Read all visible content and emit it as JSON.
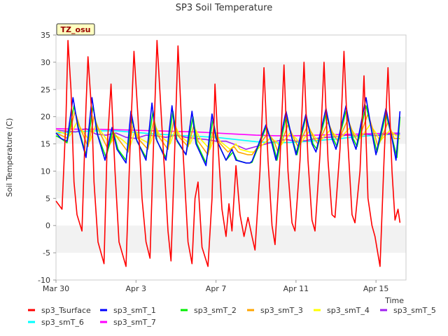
{
  "chart_data": {
    "type": "line",
    "title": "SP3 Soil Temperature",
    "xlabel": "Time",
    "ylabel": "Soil Temperature (C)",
    "site_label": "TZ_osu",
    "xlim_days": [
      0,
      17.5
    ],
    "ylim": [
      -10,
      35
    ],
    "yticks": [
      -10,
      -5,
      0,
      5,
      10,
      15,
      20,
      25,
      30,
      35
    ],
    "xticks": [
      {
        "day": 0,
        "label": "Mar 30"
      },
      {
        "day": 4,
        "label": "Apr 3"
      },
      {
        "day": 8,
        "label": "Apr 7"
      },
      {
        "day": 12,
        "label": "Apr 11"
      },
      {
        "day": 16,
        "label": "Apr 15"
      }
    ],
    "grid_bands": true,
    "x_unit": "days since Mar 30 00:00",
    "series": [
      {
        "name": "sp3_Tsurface",
        "color": "#ff0000",
        "x": [
          0.0,
          0.3,
          0.5,
          0.6,
          0.75,
          0.9,
          1.05,
          1.3,
          1.5,
          1.6,
          1.8,
          1.9,
          2.1,
          2.4,
          2.55,
          2.75,
          2.95,
          3.15,
          3.5,
          3.7,
          3.9,
          4.1,
          4.3,
          4.5,
          4.7,
          4.85,
          5.05,
          5.3,
          5.6,
          5.75,
          5.9,
          6.1,
          6.3,
          6.6,
          6.8,
          6.95,
          7.1,
          7.3,
          7.6,
          7.8,
          7.95,
          8.1,
          8.3,
          8.5,
          8.65,
          8.8,
          9.0,
          9.2,
          9.4,
          9.6,
          9.8,
          9.95,
          10.2,
          10.4,
          10.6,
          10.8,
          10.95,
          11.2,
          11.4,
          11.6,
          11.8,
          11.95,
          12.2,
          12.4,
          12.6,
          12.8,
          12.95,
          13.2,
          13.4,
          13.6,
          13.8,
          13.95,
          14.2,
          14.4,
          14.6,
          14.8,
          14.95,
          15.2,
          15.4,
          15.6,
          15.8,
          15.95,
          16.2,
          16.4,
          16.6,
          16.8,
          16.95,
          17.1,
          17.2
        ],
        "values": [
          4.5,
          3.0,
          20.0,
          34.0,
          25.0,
          8.0,
          2.0,
          -1.0,
          22.0,
          31.0,
          20.0,
          8.0,
          -3.0,
          -7.0,
          14.0,
          26.0,
          10.0,
          -3.0,
          -7.5,
          14.0,
          32.0,
          20.0,
          5.0,
          -3.0,
          -6.0,
          12.0,
          34.0,
          18.0,
          -1.0,
          -6.5,
          10.0,
          33.0,
          17.0,
          -3.0,
          -7.0,
          5.0,
          8.0,
          -4.0,
          -7.5,
          5.0,
          26.0,
          15.0,
          3.0,
          -2.0,
          4.0,
          -1.0,
          11.0,
          2.0,
          -2.0,
          1.5,
          -2.0,
          -4.5,
          10.0,
          29.0,
          12.0,
          0.0,
          -3.5,
          12.0,
          29.5,
          10.0,
          0.5,
          -1.0,
          12.0,
          30.0,
          12.0,
          1.0,
          -1.0,
          13.0,
          30.0,
          12.0,
          2.0,
          1.5,
          14.0,
          32.0,
          15.0,
          2.0,
          0.5,
          10.0,
          27.5,
          5.0,
          0.0,
          -2.0,
          -7.5,
          12.0,
          29.0,
          10.0,
          1.0,
          3.0,
          0.5
        ]
      },
      {
        "name": "sp3_smT_1",
        "color": "#0000ff",
        "x": [
          0.0,
          0.25,
          0.55,
          0.85,
          1.1,
          1.5,
          1.8,
          2.05,
          2.45,
          2.8,
          3.05,
          3.5,
          3.75,
          4.0,
          4.5,
          4.8,
          5.0,
          5.5,
          5.8,
          6.0,
          6.5,
          6.8,
          7.0,
          7.5,
          7.8,
          8.0,
          8.5,
          8.8,
          9.0,
          9.5,
          9.7,
          9.8,
          10.5,
          10.8,
          11.0,
          11.5,
          11.8,
          12.0,
          12.5,
          12.8,
          13.0,
          13.5,
          13.8,
          14.0,
          14.5,
          14.8,
          15.0,
          15.5,
          15.8,
          16.0,
          16.5,
          16.8,
          17.0,
          17.2
        ],
        "values": [
          17.0,
          16.0,
          15.5,
          23.5,
          18.0,
          12.5,
          23.5,
          17.0,
          12.0,
          18.0,
          14.0,
          11.5,
          21.0,
          16.0,
          12.0,
          22.5,
          16.0,
          12.0,
          22.0,
          16.0,
          13.0,
          21.0,
          15.0,
          11.0,
          20.5,
          16.0,
          12.0,
          14.0,
          12.0,
          11.5,
          11.5,
          11.8,
          18.5,
          15.0,
          12.0,
          21.0,
          16.0,
          13.0,
          20.5,
          15.0,
          13.5,
          21.5,
          16.0,
          14.0,
          22.0,
          16.0,
          14.0,
          23.5,
          17.0,
          13.0,
          21.5,
          16.0,
          12.0,
          21.0
        ]
      },
      {
        "name": "sp3_smT_2",
        "color": "#00ee00",
        "x": [
          0.0,
          0.25,
          0.55,
          0.9,
          1.15,
          1.5,
          1.85,
          2.1,
          2.5,
          2.85,
          3.1,
          3.5,
          3.8,
          4.05,
          4.5,
          4.85,
          5.05,
          5.5,
          5.85,
          6.05,
          6.5,
          6.85,
          7.05,
          7.5,
          7.85,
          8.05,
          8.5,
          8.85,
          9.05,
          9.5,
          9.7,
          9.8,
          10.5,
          10.85,
          11.05,
          11.5,
          11.85,
          12.05,
          12.5,
          12.85,
          13.05,
          13.5,
          13.85,
          14.05,
          14.5,
          14.85,
          15.05,
          15.5,
          15.85,
          16.05,
          16.5,
          16.85,
          17.05,
          17.2
        ],
        "values": [
          16.5,
          16.0,
          15.2,
          22.0,
          17.5,
          13.0,
          22.0,
          16.5,
          12.5,
          17.5,
          14.0,
          12.0,
          19.5,
          15.5,
          12.5,
          21.0,
          15.5,
          12.5,
          21.0,
          15.5,
          13.0,
          20.0,
          15.0,
          11.5,
          19.5,
          15.5,
          12.0,
          13.5,
          12.0,
          11.5,
          11.5,
          11.6,
          18.0,
          15.0,
          12.0,
          20.0,
          15.5,
          13.0,
          20.0,
          15.0,
          14.0,
          20.5,
          16.0,
          14.5,
          21.0,
          16.0,
          14.5,
          22.0,
          16.5,
          13.5,
          20.5,
          15.5,
          12.5,
          20.0
        ]
      },
      {
        "name": "sp3_smT_3",
        "color": "#ffa500",
        "x": [
          0.0,
          0.6,
          0.95,
          1.2,
          1.6,
          1.9,
          2.2,
          2.6,
          2.9,
          3.2,
          3.6,
          3.85,
          4.1,
          4.6,
          4.9,
          5.1,
          5.6,
          5.9,
          6.1,
          6.6,
          6.9,
          7.1,
          7.6,
          7.9,
          8.1,
          8.6,
          8.9,
          9.1,
          9.6,
          9.8,
          10.6,
          10.9,
          11.1,
          11.6,
          11.9,
          12.1,
          12.6,
          12.9,
          13.1,
          13.6,
          13.9,
          14.1,
          14.6,
          14.9,
          15.1,
          15.6,
          15.9,
          16.1,
          16.6,
          16.9,
          17.2
        ],
        "values": [
          17.0,
          16.0,
          21.0,
          18.0,
          14.5,
          20.0,
          17.0,
          14.0,
          17.0,
          15.5,
          13.5,
          18.5,
          16.0,
          14.0,
          19.5,
          16.5,
          14.0,
          19.5,
          16.5,
          14.5,
          18.5,
          15.5,
          13.0,
          18.0,
          15.5,
          13.5,
          14.5,
          13.5,
          13.0,
          13.0,
          17.0,
          15.5,
          13.5,
          18.5,
          16.0,
          14.5,
          18.5,
          16.0,
          15.0,
          19.0,
          16.5,
          15.5,
          19.5,
          16.5,
          15.5,
          20.5,
          17.0,
          14.5,
          19.0,
          16.0,
          16.0
        ]
      },
      {
        "name": "sp3_smT_4",
        "color": "#ffff00",
        "x": [
          0.0,
          0.7,
          1.05,
          1.3,
          1.7,
          2.0,
          2.3,
          2.7,
          3.0,
          3.3,
          3.7,
          3.95,
          4.2,
          4.7,
          5.0,
          5.2,
          5.7,
          6.0,
          6.2,
          6.7,
          7.0,
          7.2,
          7.7,
          8.0,
          8.2,
          8.7,
          9.0,
          9.2,
          9.7,
          9.9,
          10.7,
          11.0,
          11.2,
          11.7,
          12.0,
          12.2,
          12.7,
          13.0,
          13.2,
          13.7,
          14.0,
          14.2,
          14.7,
          15.0,
          15.2,
          15.7,
          16.0,
          16.2,
          16.7,
          17.0,
          17.2
        ],
        "values": [
          17.5,
          16.5,
          19.0,
          17.5,
          15.5,
          18.5,
          17.0,
          15.0,
          16.5,
          15.8,
          14.5,
          17.5,
          16.0,
          15.0,
          18.0,
          16.5,
          15.0,
          18.0,
          16.5,
          15.0,
          17.5,
          16.0,
          14.0,
          17.0,
          15.5,
          14.0,
          15.0,
          14.0,
          13.5,
          13.5,
          16.0,
          15.5,
          14.5,
          17.0,
          16.0,
          15.0,
          17.5,
          16.0,
          15.5,
          17.5,
          16.5,
          16.0,
          18.0,
          16.5,
          16.0,
          18.5,
          17.0,
          15.5,
          17.5,
          16.5,
          16.5
        ]
      },
      {
        "name": "sp3_smT_5",
        "color": "#a020f0",
        "x": [
          0.0,
          1.0,
          1.5,
          2.0,
          2.5,
          3.0,
          3.5,
          4.0,
          4.5,
          5.0,
          5.5,
          6.0,
          6.5,
          7.0,
          7.5,
          8.0,
          8.5,
          9.0,
          9.5,
          10.0,
          10.5,
          11.0,
          11.5,
          12.0,
          12.5,
          13.0,
          13.5,
          14.0,
          14.5,
          15.0,
          15.5,
          16.0,
          16.5,
          17.0,
          17.2
        ],
        "values": [
          17.5,
          17.2,
          17.8,
          16.8,
          16.6,
          17.0,
          16.2,
          16.0,
          16.6,
          16.5,
          16.2,
          16.6,
          16.2,
          16.0,
          15.8,
          15.5,
          15.5,
          14.8,
          14.0,
          14.5,
          15.0,
          15.5,
          15.8,
          15.5,
          15.6,
          16.0,
          16.2,
          16.3,
          16.6,
          16.5,
          16.8,
          16.5,
          16.8,
          16.8,
          16.8
        ]
      },
      {
        "name": "sp3_smT_6",
        "color": "#00ffff",
        "x": [
          0.0,
          1.0,
          2.0,
          3.0,
          4.0,
          5.0,
          6.0,
          7.0,
          8.0,
          9.0,
          10.0,
          11.0,
          12.0,
          13.0,
          14.0,
          15.0,
          16.0,
          17.0,
          17.2
        ],
        "values": [
          17.0,
          17.2,
          17.4,
          17.4,
          17.1,
          16.8,
          16.6,
          16.4,
          16.2,
          15.8,
          15.4,
          15.2,
          15.3,
          15.6,
          15.9,
          16.3,
          16.6,
          16.8,
          16.9
        ]
      },
      {
        "name": "sp3_smT_7",
        "color": "#ff00ff",
        "x": [
          0.0,
          1.0,
          2.0,
          3.0,
          4.0,
          5.0,
          6.0,
          7.0,
          8.0,
          9.0,
          10.0,
          11.0,
          12.0,
          13.0,
          14.0,
          15.0,
          16.0,
          17.0,
          17.2
        ],
        "values": [
          17.8,
          17.7,
          17.7,
          17.6,
          17.5,
          17.4,
          17.3,
          17.2,
          17.0,
          16.8,
          16.6,
          16.5,
          16.5,
          16.6,
          16.7,
          16.8,
          16.9,
          17.0,
          17.0
        ]
      }
    ]
  }
}
